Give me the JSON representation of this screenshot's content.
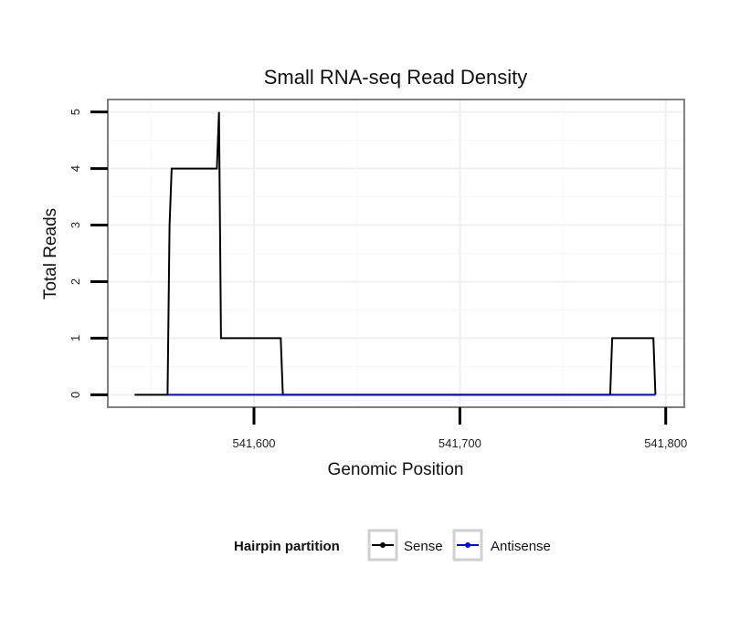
{
  "chart_data": {
    "type": "line",
    "title": "Small RNA-seq Read Density",
    "xlabel": "Genomic Position",
    "ylabel": "Total Reads",
    "xlim": [
      541529,
      541809
    ],
    "ylim": [
      -0.22,
      5.22
    ],
    "x_ticks": [
      541600,
      541700,
      541800
    ],
    "x_tick_labels": [
      "541,600",
      "541,700",
      "541,800"
    ],
    "y_ticks": [
      0,
      1,
      2,
      3,
      4,
      5
    ],
    "y_tick_labels": [
      "0",
      "1",
      "2",
      "3",
      "4",
      "5"
    ],
    "grid": true,
    "legend": {
      "title": "Hairpin partition",
      "position": "bottom",
      "entries": [
        "Sense",
        "Antisense"
      ]
    },
    "series": [
      {
        "name": "Sense",
        "color": "#000000",
        "x": [
          541542,
          541558,
          541559,
          541560,
          541582,
          541583,
          541584,
          541613,
          541614,
          541773,
          541774,
          541794,
          541795
        ],
        "y": [
          0,
          0,
          3,
          4,
          4,
          5,
          1,
          1,
          0,
          0,
          1,
          1,
          0
        ]
      },
      {
        "name": "Antisense",
        "color": "#0000ff",
        "x": [
          541558,
          541614,
          541773,
          541795
        ],
        "y": [
          0,
          0,
          0,
          0
        ]
      }
    ]
  }
}
